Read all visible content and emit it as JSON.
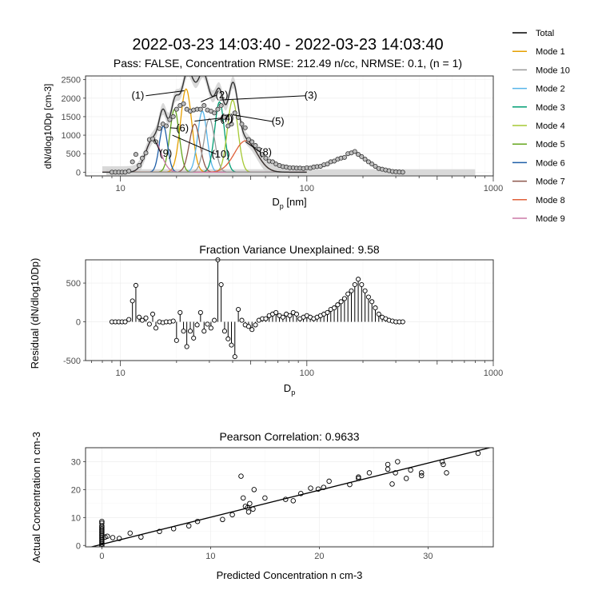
{
  "figure": {
    "title": "2022-03-23 14:03:40 - 2022-03-23 14:03:40",
    "subtitle": "Pass: FALSE, Concentration RMSE: 212.49 n/cc, NRMSE: 0.1, (n = 1)"
  },
  "legend": {
    "items": [
      {
        "label": "Total",
        "color": "#000000"
      },
      {
        "label": "Mode 1",
        "color": "#E69F00"
      },
      {
        "label": "Mode 10",
        "color": "#999999"
      },
      {
        "label": "Mode 2",
        "color": "#56B4E9"
      },
      {
        "label": "Mode 3",
        "color": "#009E73"
      },
      {
        "label": "Mode 4",
        "color": "#A6C934"
      },
      {
        "label": "Mode 5",
        "color": "#66A61E"
      },
      {
        "label": "Mode 6",
        "color": "#1F5FA8"
      },
      {
        "label": "Mode 7",
        "color": "#8C564B"
      },
      {
        "label": "Mode 8",
        "color": "#E0603A"
      },
      {
        "label": "Mode 9",
        "color": "#CC79A7"
      }
    ]
  },
  "chart_data": [
    {
      "type": "line",
      "id": "distribution",
      "xlabel_main": "D",
      "xlabel_sub": "p",
      "xlabel_unit": "[nm]",
      "ylabel": "dN/dlog10Dp [cm-3]",
      "xscale": "log",
      "xlim": [
        6.5,
        1000
      ],
      "ylim": [
        -100,
        2600
      ],
      "xticks": [
        10,
        100,
        1000
      ],
      "yticks": [
        0,
        500,
        1000,
        1500,
        2000,
        2500
      ],
      "grid": true,
      "observed": {
        "x": [
          9.0,
          9.4,
          9.8,
          10.2,
          10.6,
          11.1,
          11.6,
          12.1,
          12.6,
          13.1,
          13.7,
          14.3,
          14.9,
          15.5,
          16.2,
          16.9,
          17.6,
          18.4,
          19.2,
          20.0,
          20.9,
          21.8,
          22.7,
          23.7,
          24.7,
          25.8,
          26.9,
          28.1,
          29.3,
          30.6,
          31.9,
          33.3,
          34.7,
          36.2,
          37.8,
          39.4,
          41.1,
          42.9,
          44.8,
          46.7,
          48.7,
          50.8,
          53.0,
          55.3,
          57.7,
          60.2,
          62.8,
          65.5,
          68.3,
          71.3,
          74.4,
          77.6,
          81.0,
          84.5,
          88.1,
          91.9,
          95.9,
          100.0,
          104.3,
          108.8,
          113.5,
          118.4,
          123.5,
          128.9,
          134.4,
          140.2,
          146.3,
          152.6,
          159.2,
          166.1,
          173.3,
          180.8,
          188.6,
          196.7,
          205.2,
          214.1,
          223.4,
          233.0,
          243.1,
          253.6,
          264.6,
          276.0,
          287.9,
          300.4,
          313.3,
          326.9
        ],
        "y": [
          0,
          0,
          0,
          0,
          0,
          30,
          280,
          480,
          180,
          380,
          520,
          880,
          900,
          820,
          1180,
          1300,
          1250,
          1420,
          1500,
          1700,
          1800,
          1850,
          1700,
          1650,
          1680,
          1700,
          1700,
          1800,
          1680,
          1650,
          1600,
          1700,
          1800,
          1480,
          1250,
          1300,
          1600,
          1480,
          1300,
          1200,
          880,
          820,
          720,
          620,
          480,
          380,
          300,
          280,
          220,
          180,
          150,
          140,
          120,
          120,
          110,
          110,
          100,
          120,
          110,
          140,
          150,
          160,
          200,
          220,
          280,
          300,
          350,
          380,
          400,
          500,
          520,
          560,
          480,
          420,
          350,
          280,
          220,
          160,
          100,
          80,
          60,
          40,
          20,
          10,
          5,
          0
        ]
      },
      "fit_band": {
        "x": [
          8.4,
          800
        ],
        "half_width": 80
      },
      "modes": [
        {
          "name": "Mode 1",
          "center": 22.5,
          "peak": 2250,
          "width": 0.03
        },
        {
          "name": "Mode 2",
          "center": 27.5,
          "peak": 1650,
          "width": 0.025
        },
        {
          "name": "Mode 3",
          "center": 34.0,
          "peak": 1900,
          "width": 0.026
        },
        {
          "name": "Mode 4",
          "center": 40.0,
          "peak": 1950,
          "width": 0.028
        },
        {
          "name": "Mode 5",
          "center": 19.5,
          "peak": 1700,
          "width": 0.025
        },
        {
          "name": "Mode 6",
          "center": 17.0,
          "peak": 1250,
          "width": 0.022
        },
        {
          "name": "Mode 7",
          "center": 25.0,
          "peak": 1300,
          "width": 0.028
        },
        {
          "name": "Mode 8",
          "center": 47.0,
          "peak": 850,
          "width": 0.06
        },
        {
          "name": "Mode 9",
          "center": 15.0,
          "peak": 900,
          "width": 0.04
        },
        {
          "name": "Mode 10",
          "center": 30.0,
          "peak": 1450,
          "width": 0.028
        }
      ],
      "annotations": [
        {
          "label": "(1)",
          "x": 12.4,
          "y": 1980,
          "target_x": 22.0,
          "target_y": 2200
        },
        {
          "label": "(2)",
          "x": 35.0,
          "y": 2000,
          "target_x": 27.0,
          "target_y": 1900
        },
        {
          "label": "(3)",
          "x": 105,
          "y": 1980,
          "target_x": 34.0,
          "target_y": 1950
        },
        {
          "label": "(4)",
          "x": 37.5,
          "y": 1380,
          "target_x": 25.0,
          "target_y": 1380
        },
        {
          "label": "(5)",
          "x": 70,
          "y": 1280,
          "target_x": 40.0,
          "target_y": 1550
        },
        {
          "label": "(6)",
          "x": 21.5,
          "y": 1100,
          "target_x": 18.5,
          "target_y": 1200
        },
        {
          "label": "(7)",
          "x": 37.0,
          "y": 1360,
          "target_x": 32.0,
          "target_y": 1380
        },
        {
          "label": "(8)",
          "x": 60,
          "y": 450,
          "target_x": 47.0,
          "target_y": 820
        },
        {
          "label": "(9)",
          "x": 17.5,
          "y": 420,
          "target_x": 15.2,
          "target_y": 890
        },
        {
          "label": "(10)",
          "x": 34.5,
          "y": 400,
          "target_x": 19.0,
          "target_y": 1000
        }
      ]
    },
    {
      "type": "scatter",
      "id": "residual",
      "title": "Fraction Variance Unexplained: 9.58",
      "xlabel_main": "D",
      "xlabel_sub": "p",
      "ylabel": "Residual (dN/dlog10Dp)",
      "xscale": "log",
      "xlim": [
        6.5,
        1000
      ],
      "ylim": [
        -500,
        800
      ],
      "xticks": [
        10,
        100,
        1000
      ],
      "yticks": [
        -500,
        0,
        500
      ],
      "grid": true,
      "x": [
        9.0,
        9.4,
        9.8,
        10.2,
        10.6,
        11.1,
        11.6,
        12.1,
        12.6,
        13.1,
        13.7,
        14.3,
        14.9,
        15.5,
        16.2,
        16.9,
        17.6,
        18.4,
        19.2,
        20.0,
        20.9,
        21.8,
        22.7,
        23.7,
        24.7,
        25.8,
        26.9,
        28.1,
        29.3,
        30.6,
        31.9,
        33.3,
        34.7,
        36.2,
        37.8,
        39.4,
        41.1,
        42.9,
        44.8,
        46.7,
        48.7,
        50.8,
        53.0,
        55.3,
        57.7,
        60.2,
        62.8,
        65.5,
        68.3,
        71.3,
        74.4,
        77.6,
        81.0,
        84.5,
        88.1,
        91.9,
        95.9,
        100.0,
        104.3,
        108.8,
        113.5,
        118.4,
        123.5,
        128.9,
        134.4,
        140.2,
        146.3,
        152.6,
        159.2,
        166.1,
        173.3,
        180.8,
        188.6,
        196.7,
        205.2,
        214.1,
        223.4,
        233.0,
        243.1,
        253.6,
        264.6,
        276.0,
        287.9,
        300.4,
        313.3,
        326.9
      ],
      "y": [
        0,
        0,
        0,
        0,
        0,
        30,
        270,
        470,
        60,
        20,
        50,
        -30,
        100,
        -80,
        0,
        -10,
        0,
        0,
        10,
        -240,
        120,
        -120,
        -320,
        -120,
        -210,
        -40,
        120,
        -120,
        -30,
        -80,
        20,
        800,
        480,
        -120,
        -220,
        -300,
        -450,
        160,
        20,
        -40,
        -60,
        -100,
        -40,
        20,
        40,
        40,
        80,
        100,
        120,
        80,
        60,
        100,
        80,
        120,
        100,
        40,
        60,
        80,
        60,
        40,
        60,
        80,
        100,
        120,
        160,
        180,
        220,
        260,
        300,
        360,
        400,
        480,
        550,
        480,
        400,
        320,
        260,
        180,
        100,
        60,
        40,
        20,
        10,
        0,
        0,
        0
      ]
    },
    {
      "type": "scatter",
      "id": "correlation",
      "title": "Pearson Correlation: 0.9633",
      "xlabel": "Predicted Concentration  n cm-3",
      "ylabel": "Actual Concentration  n cm-3",
      "xlim": [
        -1.5,
        36
      ],
      "ylim": [
        -0.5,
        35
      ],
      "xticks": [
        0,
        10,
        20,
        30
      ],
      "yticks": [
        0,
        10,
        20,
        30
      ],
      "grid": true,
      "fit_line": {
        "slope": 0.97,
        "intercept": 0.4
      },
      "x": [
        0,
        0,
        0,
        0,
        0,
        0,
        0,
        0,
        0,
        0,
        0,
        0,
        0,
        0,
        0,
        0,
        0,
        0.3,
        0.5,
        1.0,
        1.6,
        2.6,
        3.6,
        5.3,
        6.6,
        8.0,
        8.8,
        11.1,
        12.0,
        12.8,
        13.0,
        13.2,
        13.6,
        13.4,
        13.9,
        13.5,
        14.0,
        15.0,
        16.9,
        17.6,
        18.3,
        19.2,
        19.9,
        20.4,
        20.9,
        22.8,
        23.6,
        23.6,
        24.6,
        26.3,
        26.3,
        26.7,
        27.0,
        27.2,
        28.0,
        28.4,
        29.4,
        29.4,
        31.3,
        31.4,
        31.7,
        34.6
      ],
      "y": [
        0,
        0.5,
        1,
        1.5,
        2,
        2.5,
        3,
        3.5,
        4,
        4.5,
        5,
        5.5,
        6,
        6.5,
        7,
        8,
        8.6,
        3,
        3.3,
        2.8,
        2.5,
        4.4,
        3.0,
        5,
        6,
        7,
        8.6,
        9.3,
        11,
        24.8,
        17,
        14,
        15,
        13.5,
        13,
        12,
        20,
        17,
        16.5,
        16,
        18.6,
        20.5,
        20.2,
        20.8,
        23,
        21.8,
        24.5,
        24,
        26,
        27.3,
        29,
        22,
        26,
        30,
        24,
        27,
        25,
        26,
        30,
        29,
        26,
        33
      ]
    }
  ]
}
